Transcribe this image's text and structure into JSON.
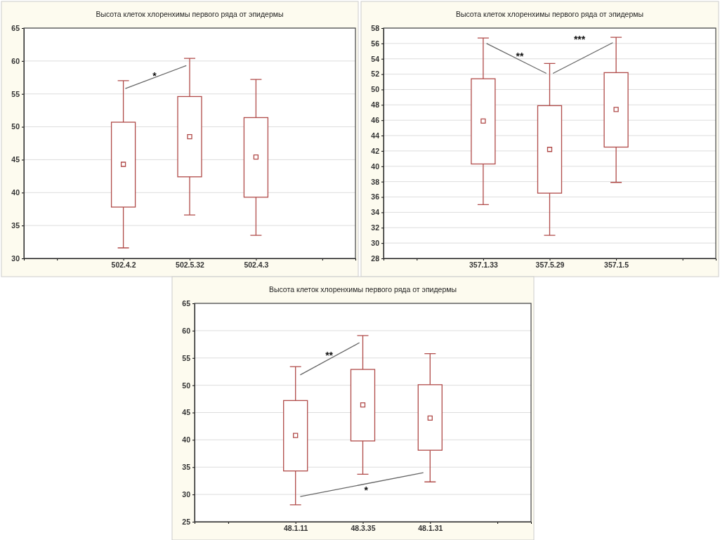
{
  "chart_data": [
    {
      "type": "box",
      "title": "Высота клеток хлоренхимы первого ряда от эпидермы",
      "categories": [
        null,
        "502.4.2",
        "502.5.32",
        "502.4.3",
        null
      ],
      "color": "#b04a48",
      "ylim": [
        30,
        65
      ],
      "yticks": [
        30,
        35,
        40,
        45,
        50,
        55,
        60,
        65
      ],
      "grid": "y",
      "annotations": [
        "*"
      ],
      "boxes": [
        null,
        {
          "low": 31.6,
          "q1": 37.8,
          "median": 44.3,
          "q3": 50.7,
          "high": 57
        },
        {
          "low": 36.6,
          "q1": 42.4,
          "median": 48.5,
          "q3": 54.6,
          "high": 60.4
        },
        {
          "low": 33.5,
          "q1": 39.3,
          "median": 45.4,
          "q3": 51.4,
          "high": 57.2
        },
        null
      ]
    },
    {
      "type": "box",
      "title": "Высота клеток хлоренхимы первого ряда от эпидермы",
      "categories": [
        null,
        "357.1.33",
        "357.5.29",
        "357.1.5",
        null
      ],
      "color": "#b04a48",
      "ylim": [
        28,
        58
      ],
      "yticks": [
        28,
        30,
        32,
        34,
        36,
        38,
        40,
        42,
        44,
        46,
        48,
        50,
        52,
        54,
        56,
        58
      ],
      "grid": "y",
      "annotations": [
        "**",
        "***"
      ],
      "boxes": [
        null,
        {
          "low": 35,
          "q1": 40.3,
          "median": 45.9,
          "q3": 51.4,
          "high": 56.7
        },
        {
          "low": 31,
          "q1": 36.5,
          "median": 42.2,
          "q3": 47.9,
          "high": 53.4
        },
        {
          "low": 37.9,
          "q1": 42.5,
          "median": 47.4,
          "q3": 52.2,
          "high": 56.8
        },
        null
      ]
    },
    {
      "type": "box",
      "title": "Высота клеток хлоренхимы первого ряда от эпидермы",
      "categories": [
        null,
        "48.1.11",
        "48.3.35",
        "48.1.31",
        null
      ],
      "color": "#b04a48",
      "ylim": [
        25,
        65
      ],
      "yticks": [
        25,
        30,
        35,
        40,
        45,
        50,
        55,
        60,
        65
      ],
      "grid": "y",
      "annotations": [
        "**",
        "*"
      ],
      "boxes": [
        null,
        {
          "low": 28.1,
          "q1": 34.3,
          "median": 40.8,
          "q3": 47.2,
          "high": 53.4
        },
        {
          "low": 33.7,
          "q1": 39.8,
          "median": 46.4,
          "q3": 52.9,
          "high": 59.1
        },
        {
          "low": 32.3,
          "q1": 38.1,
          "median": 44,
          "q3": 50.1,
          "high": 55.8
        },
        null
      ]
    }
  ]
}
